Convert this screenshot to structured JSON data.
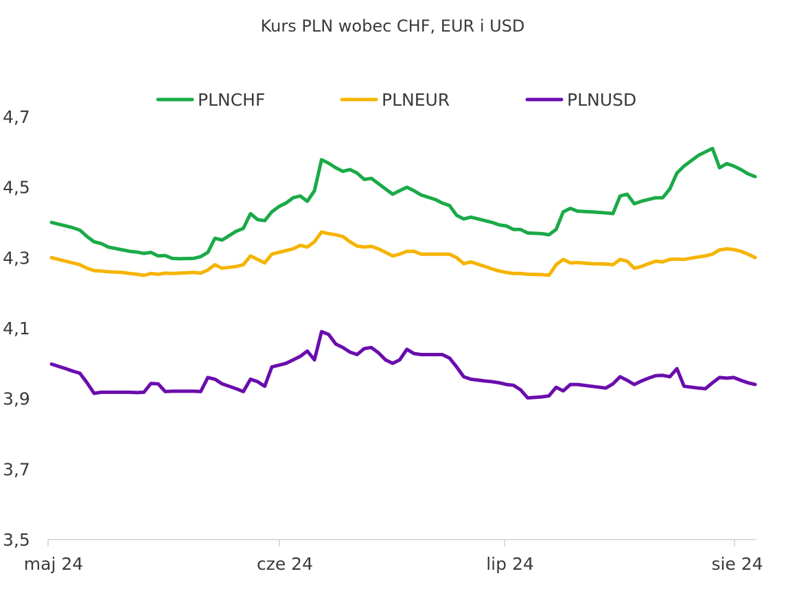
{
  "chart_data": {
    "type": "line",
    "title": "Kurs PLN wobec CHF, EUR i USD",
    "xlabel": "",
    "ylabel": "",
    "ylim": [
      3.5,
      4.7
    ],
    "yticks": [
      "3,5",
      "3,7",
      "3,9",
      "4,1",
      "4,3",
      "4,5",
      "4,7"
    ],
    "xticks": [
      {
        "label": "maj 24",
        "day": 1
      },
      {
        "label": "cze 24",
        "day": 32
      },
      {
        "label": "lip 24",
        "day": 62
      },
      {
        "label": "sie 24",
        "day": 93
      }
    ],
    "x_range_days": [
      1,
      95
    ],
    "legend": {
      "position": "top"
    },
    "grid": false,
    "series": [
      {
        "name": "PLNCHF",
        "color": "#1aaa48",
        "points": [
          [
            1,
            4.4
          ],
          [
            3,
            4.39
          ],
          [
            4,
            4.385
          ],
          [
            5,
            4.378
          ],
          [
            6,
            4.36
          ],
          [
            7,
            4.345
          ],
          [
            8,
            4.34
          ],
          [
            9,
            4.33
          ],
          [
            11,
            4.322
          ],
          [
            12,
            4.318
          ],
          [
            13,
            4.316
          ],
          [
            14,
            4.312
          ],
          [
            15,
            4.315
          ],
          [
            16,
            4.305
          ],
          [
            17,
            4.306
          ],
          [
            18,
            4.298
          ],
          [
            19,
            4.297
          ],
          [
            21,
            4.298
          ],
          [
            22,
            4.303
          ],
          [
            23,
            4.315
          ],
          [
            24,
            4.355
          ],
          [
            25,
            4.35
          ],
          [
            27,
            4.375
          ],
          [
            28,
            4.383
          ],
          [
            29,
            4.425
          ],
          [
            30,
            4.408
          ],
          [
            31,
            4.405
          ],
          [
            32,
            4.43
          ],
          [
            33,
            4.445
          ],
          [
            34,
            4.455
          ],
          [
            35,
            4.47
          ],
          [
            36,
            4.475
          ],
          [
            37,
            4.46
          ],
          [
            38,
            4.49
          ],
          [
            39,
            4.578
          ],
          [
            40,
            4.568
          ],
          [
            41,
            4.555
          ],
          [
            42,
            4.545
          ],
          [
            43,
            4.55
          ],
          [
            44,
            4.54
          ],
          [
            45,
            4.522
          ],
          [
            46,
            4.525
          ],
          [
            47,
            4.51
          ],
          [
            48,
            4.495
          ],
          [
            49,
            4.48
          ],
          [
            50,
            4.49
          ],
          [
            51,
            4.5
          ],
          [
            52,
            4.49
          ],
          [
            53,
            4.478
          ],
          [
            55,
            4.465
          ],
          [
            56,
            4.455
          ],
          [
            57,
            4.448
          ],
          [
            58,
            4.42
          ],
          [
            59,
            4.41
          ],
          [
            60,
            4.415
          ],
          [
            62,
            4.405
          ],
          [
            63,
            4.4
          ],
          [
            64,
            4.393
          ],
          [
            65,
            4.39
          ],
          [
            66,
            4.38
          ],
          [
            67,
            4.38
          ],
          [
            68,
            4.37
          ],
          [
            70,
            4.368
          ],
          [
            71,
            4.365
          ],
          [
            72,
            4.38
          ],
          [
            73,
            4.43
          ],
          [
            74,
            4.44
          ],
          [
            75,
            4.432
          ],
          [
            77,
            4.43
          ],
          [
            79,
            4.427
          ],
          [
            80,
            4.425
          ],
          [
            81,
            4.475
          ],
          [
            82,
            4.48
          ],
          [
            83,
            4.453
          ],
          [
            84,
            4.46
          ],
          [
            85,
            4.465
          ],
          [
            86,
            4.47
          ],
          [
            87,
            4.47
          ],
          [
            88,
            4.495
          ],
          [
            89,
            4.54
          ],
          [
            90,
            4.56
          ],
          [
            92,
            4.59
          ],
          [
            93,
            4.6
          ],
          [
            94,
            4.61
          ],
          [
            95,
            4.555
          ],
          [
            96,
            4.567
          ],
          [
            97,
            4.56
          ],
          [
            98,
            4.55
          ],
          [
            99,
            4.538
          ],
          [
            100,
            4.53
          ]
        ]
      },
      {
        "name": "PLNEUR",
        "color": "#f5b400",
        "points": [
          [
            1,
            4.3
          ],
          [
            3,
            4.29
          ],
          [
            4,
            4.285
          ],
          [
            5,
            4.28
          ],
          [
            6,
            4.27
          ],
          [
            7,
            4.263
          ],
          [
            8,
            4.262
          ],
          [
            9,
            4.26
          ],
          [
            11,
            4.258
          ],
          [
            12,
            4.255
          ],
          [
            13,
            4.253
          ],
          [
            14,
            4.25
          ],
          [
            15,
            4.255
          ],
          [
            16,
            4.253
          ],
          [
            17,
            4.256
          ],
          [
            18,
            4.255
          ],
          [
            19,
            4.256
          ],
          [
            21,
            4.258
          ],
          [
            22,
            4.256
          ],
          [
            23,
            4.265
          ],
          [
            24,
            4.28
          ],
          [
            25,
            4.27
          ],
          [
            27,
            4.275
          ],
          [
            28,
            4.28
          ],
          [
            29,
            4.305
          ],
          [
            30,
            4.295
          ],
          [
            31,
            4.285
          ],
          [
            32,
            4.31
          ],
          [
            33,
            4.315
          ],
          [
            34,
            4.32
          ],
          [
            35,
            4.325
          ],
          [
            36,
            4.335
          ],
          [
            37,
            4.33
          ],
          [
            38,
            4.345
          ],
          [
            39,
            4.373
          ],
          [
            40,
            4.368
          ],
          [
            41,
            4.365
          ],
          [
            42,
            4.36
          ],
          [
            43,
            4.345
          ],
          [
            44,
            4.333
          ],
          [
            45,
            4.33
          ],
          [
            46,
            4.332
          ],
          [
            47,
            4.325
          ],
          [
            48,
            4.315
          ],
          [
            49,
            4.305
          ],
          [
            50,
            4.31
          ],
          [
            51,
            4.318
          ],
          [
            52,
            4.318
          ],
          [
            53,
            4.31
          ],
          [
            55,
            4.31
          ],
          [
            56,
            4.31
          ],
          [
            57,
            4.31
          ],
          [
            58,
            4.3
          ],
          [
            59,
            4.283
          ],
          [
            60,
            4.288
          ],
          [
            62,
            4.275
          ],
          [
            63,
            4.268
          ],
          [
            64,
            4.262
          ],
          [
            65,
            4.258
          ],
          [
            66,
            4.255
          ],
          [
            67,
            4.255
          ],
          [
            68,
            4.253
          ],
          [
            70,
            4.252
          ],
          [
            71,
            4.25
          ],
          [
            72,
            4.28
          ],
          [
            73,
            4.295
          ],
          [
            74,
            4.285
          ],
          [
            75,
            4.286
          ],
          [
            77,
            4.283
          ],
          [
            79,
            4.282
          ],
          [
            80,
            4.28
          ],
          [
            81,
            4.295
          ],
          [
            82,
            4.29
          ],
          [
            83,
            4.27
          ],
          [
            84,
            4.275
          ],
          [
            85,
            4.283
          ],
          [
            86,
            4.29
          ],
          [
            87,
            4.288
          ],
          [
            88,
            4.295
          ],
          [
            89,
            4.296
          ],
          [
            90,
            4.295
          ],
          [
            92,
            4.302
          ],
          [
            93,
            4.305
          ],
          [
            94,
            4.31
          ],
          [
            95,
            4.322
          ],
          [
            96,
            4.325
          ],
          [
            97,
            4.323
          ],
          [
            98,
            4.318
          ],
          [
            99,
            4.31
          ],
          [
            100,
            4.3
          ]
        ]
      },
      {
        "name": "PLNUSD",
        "color": "#6a0dad",
        "points": [
          [
            1,
            3.998
          ],
          [
            3,
            3.985
          ],
          [
            4,
            3.978
          ],
          [
            5,
            3.972
          ],
          [
            6,
            3.945
          ],
          [
            7,
            3.915
          ],
          [
            8,
            3.918
          ],
          [
            9,
            3.918
          ],
          [
            11,
            3.918
          ],
          [
            12,
            3.918
          ],
          [
            13,
            3.917
          ],
          [
            14,
            3.918
          ],
          [
            15,
            3.943
          ],
          [
            16,
            3.942
          ],
          [
            17,
            3.92
          ],
          [
            18,
            3.921
          ],
          [
            19,
            3.921
          ],
          [
            21,
            3.921
          ],
          [
            22,
            3.92
          ],
          [
            23,
            3.96
          ],
          [
            24,
            3.955
          ],
          [
            25,
            3.942
          ],
          [
            27,
            3.928
          ],
          [
            28,
            3.92
          ],
          [
            29,
            3.955
          ],
          [
            30,
            3.948
          ],
          [
            31,
            3.935
          ],
          [
            32,
            3.99
          ],
          [
            33,
            3.995
          ],
          [
            34,
            4.0
          ],
          [
            35,
            4.01
          ],
          [
            36,
            4.02
          ],
          [
            37,
            4.035
          ],
          [
            38,
            4.01
          ],
          [
            39,
            4.09
          ],
          [
            40,
            4.082
          ],
          [
            41,
            4.055
          ],
          [
            42,
            4.045
          ],
          [
            43,
            4.032
          ],
          [
            44,
            4.025
          ],
          [
            45,
            4.042
          ],
          [
            46,
            4.045
          ],
          [
            47,
            4.03
          ],
          [
            48,
            4.01
          ],
          [
            49,
            4.0
          ],
          [
            50,
            4.01
          ],
          [
            51,
            4.04
          ],
          [
            52,
            4.028
          ],
          [
            53,
            4.025
          ],
          [
            55,
            4.025
          ],
          [
            56,
            4.025
          ],
          [
            57,
            4.015
          ],
          [
            58,
            3.99
          ],
          [
            59,
            3.962
          ],
          [
            60,
            3.955
          ],
          [
            62,
            3.95
          ],
          [
            63,
            3.948
          ],
          [
            64,
            3.945
          ],
          [
            65,
            3.94
          ],
          [
            66,
            3.938
          ],
          [
            67,
            3.925
          ],
          [
            68,
            3.902
          ],
          [
            70,
            3.905
          ],
          [
            71,
            3.908
          ],
          [
            72,
            3.932
          ],
          [
            73,
            3.922
          ],
          [
            74,
            3.94
          ],
          [
            75,
            3.94
          ],
          [
            77,
            3.935
          ],
          [
            79,
            3.93
          ],
          [
            80,
            3.942
          ],
          [
            81,
            3.962
          ],
          [
            82,
            3.952
          ],
          [
            83,
            3.94
          ],
          [
            84,
            3.95
          ],
          [
            85,
            3.958
          ],
          [
            86,
            3.965
          ],
          [
            87,
            3.966
          ],
          [
            88,
            3.962
          ],
          [
            89,
            3.985
          ],
          [
            90,
            3.935
          ],
          [
            92,
            3.93
          ],
          [
            93,
            3.928
          ],
          [
            94,
            3.945
          ],
          [
            95,
            3.96
          ],
          [
            96,
            3.958
          ],
          [
            97,
            3.96
          ],
          [
            98,
            3.952
          ],
          [
            99,
            3.945
          ],
          [
            100,
            3.94
          ]
        ]
      }
    ]
  }
}
